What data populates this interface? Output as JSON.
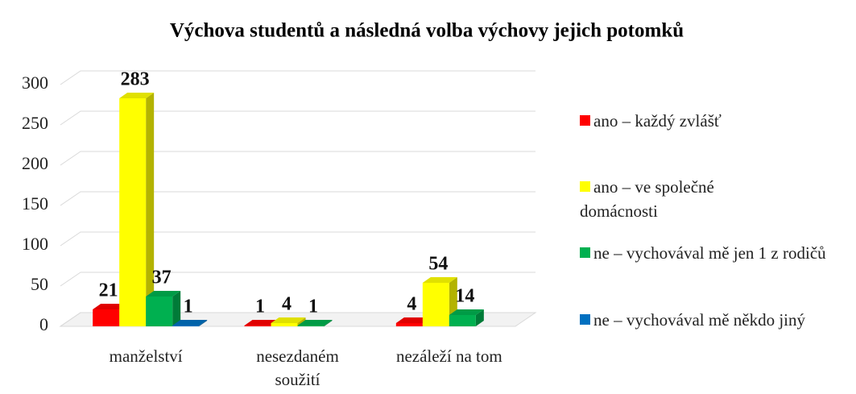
{
  "chart_data": {
    "type": "bar3d",
    "title": "Výchova studentů a následná volba výchovy jejich potomků",
    "categories": [
      "manželství",
      "nesezdaném soužití",
      "nezáleží na tom"
    ],
    "series": [
      {
        "name": "ano – každý zvlášť",
        "color": "#ff0000",
        "values": [
          21,
          1,
          4
        ]
      },
      {
        "name": "ano – ve společné domácnosti",
        "color": "#ffff00",
        "values": [
          283,
          4,
          54
        ]
      },
      {
        "name": "ne – vychovával mě jen 1 z rodičů",
        "color": "#00b050",
        "values": [
          37,
          1,
          14
        ]
      },
      {
        "name": "ne – vychovával mě někdo jiný",
        "color": "#0070c0",
        "values": [
          1,
          null,
          null
        ]
      }
    ],
    "ylim": [
      0,
      300
    ],
    "yticks": [
      0,
      50,
      100,
      150,
      200,
      250,
      300
    ],
    "grid": true,
    "legend": "right"
  }
}
